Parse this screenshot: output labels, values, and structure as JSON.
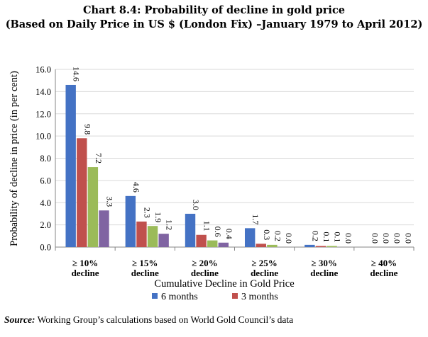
{
  "title": "Chart 8.4: Probability of decline in gold price",
  "subtitle": "(Based on Daily Price in US $ (London Fix) –January 1979 to April 2012)",
  "source_label": "Source:",
  "source_text": " Working Group’s calculations based on World Gold Council’s data",
  "colors": {
    "6 months": "#4472c4",
    "3 months": "#c0504d",
    "s3": "#9bbb59",
    "s4": "#8064a2",
    "grid": "#d9d9d9",
    "axis": "#868686"
  },
  "chart_data": {
    "type": "bar",
    "categories": [
      [
        "≥ 10%",
        "decline"
      ],
      [
        "≥ 15%",
        "decline"
      ],
      [
        "≥ 20%",
        "decline"
      ],
      [
        "≥ 25%",
        "decline"
      ],
      [
        "≥ 30%",
        "decline"
      ],
      [
        "≥ 40%",
        "decline"
      ]
    ],
    "series": [
      {
        "name": "6 months",
        "values": [
          14.6,
          4.6,
          3.0,
          1.7,
          0.2,
          0.0
        ]
      },
      {
        "name": "3 months",
        "values": [
          9.8,
          2.3,
          1.1,
          0.3,
          0.1,
          0.0
        ]
      },
      {
        "values": [
          7.2,
          1.9,
          0.6,
          0.2,
          0.1,
          0.0
        ]
      },
      {
        "values": [
          3.3,
          1.2,
          0.4,
          0.0,
          0.0,
          0.0
        ]
      }
    ],
    "xlabel": "Cumulative Decline in Gold Price",
    "ylabel": "Probability of decline in price (in per cent)",
    "ylim": [
      0,
      16
    ],
    "yticks": [
      "0.0",
      "2.0",
      "4.0",
      "6.0",
      "8.0",
      "10.0",
      "12.0",
      "14.0",
      "16.0"
    ],
    "grid": true,
    "legend": "bottom"
  }
}
